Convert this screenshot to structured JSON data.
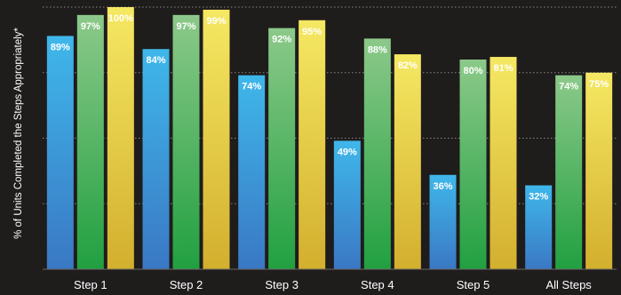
{
  "chart_data": {
    "type": "bar",
    "ylabel": "% of Units Completed the Steps Appropriately*",
    "categories": [
      "Step 1",
      "Step 2",
      "Step 3",
      "Step 4",
      "Step 5",
      "All Steps"
    ],
    "series": [
      {
        "values": [
          89,
          84,
          74,
          49,
          36,
          32
        ],
        "labels": [
          "89%",
          "84%",
          "74%",
          "49%",
          "36%",
          "32%"
        ],
        "color_top": "#3fb7ea",
        "color_bottom": "#3a78c4"
      },
      {
        "values": [
          97,
          97,
          92,
          88,
          80,
          74
        ],
        "labels": [
          "97%",
          "97%",
          "92%",
          "88%",
          "80%",
          "74%"
        ],
        "color_top": "#8cc98a",
        "color_bottom": "#21a040"
      },
      {
        "values": [
          100,
          99,
          95,
          82,
          81,
          75
        ],
        "labels": [
          "100%",
          "99%",
          "95%",
          "82%",
          "81%",
          "75%"
        ],
        "color_top": "#f5e862",
        "color_bottom": "#d3af2e"
      }
    ],
    "ylim": [
      0,
      100
    ],
    "grid": true,
    "legend": "none"
  }
}
